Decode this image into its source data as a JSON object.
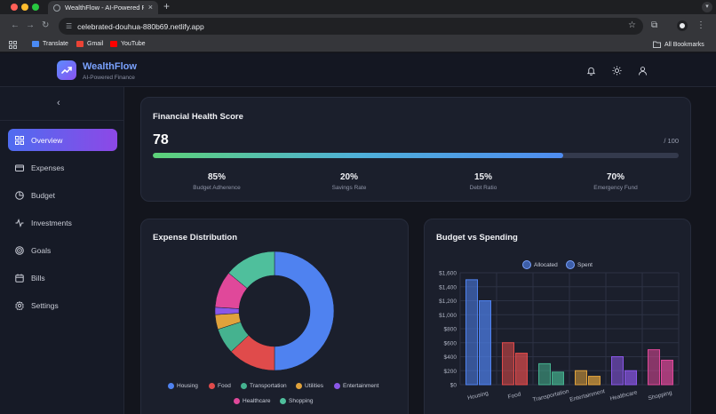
{
  "browser": {
    "tab_title": "WealthFlow - AI-Powered Pe",
    "tab_close": "×",
    "new_tab": "+",
    "url": "celebrated-douhua-880b69.netlify.app",
    "bookmarks": [
      {
        "label": "Translate",
        "color": "#4a8af4"
      },
      {
        "label": "Gmail",
        "color": "#ea4335"
      },
      {
        "label": "YouTube",
        "color": "#ff0000"
      }
    ],
    "all_bookmarks": "All Bookmarks"
  },
  "header": {
    "brand": "WealthFlow",
    "tagline": "AI-Powered Finance",
    "icons": [
      "bell-icon",
      "sun-icon",
      "user-icon"
    ]
  },
  "sidebar": {
    "collapse_icon": "chevron-left-icon",
    "items": [
      {
        "label": "Overview",
        "icon": "grid-icon",
        "active": true
      },
      {
        "label": "Expenses",
        "icon": "card-icon",
        "active": false
      },
      {
        "label": "Budget",
        "icon": "pie-icon",
        "active": false
      },
      {
        "label": "Investments",
        "icon": "pulse-icon",
        "active": false
      },
      {
        "label": "Goals",
        "icon": "target-icon",
        "active": false
      },
      {
        "label": "Bills",
        "icon": "calendar-icon",
        "active": false
      },
      {
        "label": "Settings",
        "icon": "gear-icon",
        "active": false
      }
    ]
  },
  "health": {
    "title": "Financial Health Score",
    "score": "78",
    "max_label": "/ 100",
    "progress": 0.78,
    "metrics": [
      {
        "value": "85%",
        "label": "Budget Adherence"
      },
      {
        "value": "20%",
        "label": "Savings Rate"
      },
      {
        "value": "15%",
        "label": "Debt Ratio"
      },
      {
        "value": "70%",
        "label": "Emergency Fund"
      }
    ]
  },
  "expense_card": {
    "title": "Expense Distribution"
  },
  "budget_card": {
    "title": "Budget vs Spending"
  },
  "colors": {
    "accent": "#4f6cf0",
    "housing": "#4f82f0",
    "food": "#e04b4b",
    "transportation": "#45b28f",
    "utilities": "#e0a23c",
    "entertainment": "#8a57e8",
    "healthcare": "#e0489a",
    "shopping": "#4fbf9c"
  },
  "chart_data": [
    {
      "type": "pie",
      "title": "Expense Distribution",
      "categories": [
        "Housing",
        "Food",
        "Transportation",
        "Utilities",
        "Entertainment",
        "Healthcare",
        "Shopping"
      ],
      "values": [
        50,
        13,
        7,
        4,
        2,
        10,
        14
      ],
      "colors": [
        "#4f82f0",
        "#e04b4b",
        "#45b28f",
        "#e0a23c",
        "#8a57e8",
        "#e0489a",
        "#4fbf9c"
      ],
      "donut": true,
      "legend": "bottom"
    },
    {
      "type": "bar",
      "title": "Budget vs Spending",
      "categories": [
        "Housing",
        "Food",
        "Transportation",
        "Entertainment",
        "Healthcare",
        "Shopping"
      ],
      "series": [
        {
          "name": "Allocated",
          "values": [
            1500,
            600,
            300,
            200,
            400,
            500
          ]
        },
        {
          "name": "Spent",
          "values": [
            1200,
            450,
            180,
            120,
            200,
            350
          ]
        }
      ],
      "bar_colors": [
        "#4f82f0",
        "#e04b4b",
        "#45b28f",
        "#e0a23c",
        "#8a57e8",
        "#e0489a"
      ],
      "ylim": [
        0,
        1600
      ],
      "yticks": [
        "$0",
        "$200",
        "$400",
        "$600",
        "$800",
        "$1,000",
        "$1,200",
        "$1,400",
        "$1,600"
      ],
      "grid": true,
      "legend": "top"
    }
  ]
}
